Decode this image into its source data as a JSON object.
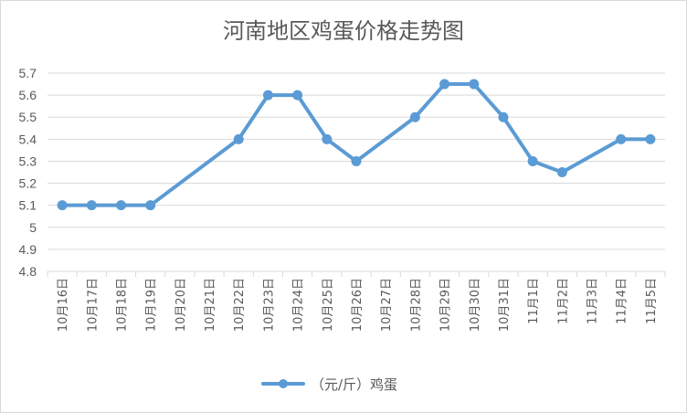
{
  "chart_data": {
    "type": "line",
    "title": "河南地区鸡蛋价格走势图",
    "categories": [
      "10月16日",
      "10月17日",
      "10月18日",
      "10月19日",
      "10月20日",
      "10月21日",
      "10月22日",
      "10月23日",
      "10月24日",
      "10月25日",
      "10月26日",
      "10月27日",
      "10月28日",
      "10月29日",
      "10月30日",
      "10月31日",
      "11月1日",
      "11月2日",
      "11月3日",
      "11月4日",
      "11月5日"
    ],
    "yticks": [
      "4.8",
      "4.9",
      "5",
      "5.1",
      "5.2",
      "5.3",
      "5.4",
      "5.5",
      "5.6",
      "5.7"
    ],
    "ylim": [
      4.8,
      5.7
    ],
    "grid": true,
    "legend_position": "bottom",
    "color": "#5b9bd5",
    "series": [
      {
        "name": "（元/斤）鸡蛋",
        "values": [
          5.1,
          5.1,
          5.1,
          5.1,
          null,
          null,
          5.4,
          5.6,
          5.6,
          5.4,
          5.3,
          null,
          5.5,
          5.65,
          5.65,
          5.5,
          5.3,
          5.25,
          null,
          5.4,
          5.4
        ]
      }
    ]
  }
}
